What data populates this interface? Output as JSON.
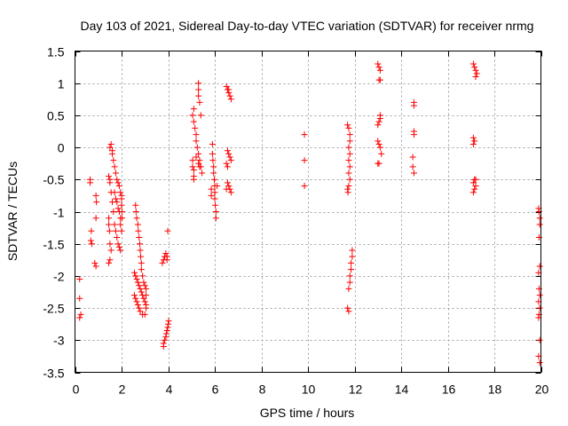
{
  "chart_data": {
    "type": "scatter",
    "title": "Day 103 of 2021, Sidereal Day-to-day VTEC variation (SDTVAR) for receiver nrmg",
    "xlabel": "GPS time / hours",
    "ylabel": "SDTVAR / TECUs",
    "xlim": [
      0,
      20
    ],
    "ylim": [
      -3.5,
      1.5
    ],
    "xticks": [
      0,
      2,
      4,
      6,
      8,
      10,
      12,
      14,
      16,
      18,
      20
    ],
    "yticks": [
      1.5,
      1,
      0.5,
      0,
      -0.5,
      -1,
      -1.5,
      -2,
      -2.5,
      -3,
      -3.5
    ],
    "xtick_labels": [
      "0",
      "2",
      "4",
      "6",
      "8",
      "10",
      "12",
      "14",
      "16",
      "18",
      "20"
    ],
    "ytick_labels": [
      "1.5",
      "1",
      "0.5",
      "0",
      "-0.5",
      "-1",
      "-1.5",
      "-2",
      "-2.5",
      "-3",
      "-3.5"
    ],
    "grid": true,
    "marker": "+",
    "marker_color": "#ff0000",
    "series": [
      {
        "name": "SDTVAR",
        "points": [
          [
            0.2,
            -2.05
          ],
          [
            0.2,
            -2.35
          ],
          [
            0.25,
            -2.6
          ],
          [
            0.2,
            -2.65
          ],
          [
            0.65,
            -0.5
          ],
          [
            0.65,
            -0.55
          ],
          [
            0.7,
            -1.3
          ],
          [
            0.68,
            -1.45
          ],
          [
            0.72,
            -1.5
          ],
          [
            0.9,
            -0.75
          ],
          [
            0.92,
            -0.85
          ],
          [
            0.9,
            -1.1
          ],
          [
            0.85,
            -1.8
          ],
          [
            0.9,
            -1.85
          ],
          [
            1.5,
            0.0
          ],
          [
            1.55,
            0.05
          ],
          [
            1.6,
            -0.05
          ],
          [
            1.6,
            -0.1
          ],
          [
            1.65,
            -0.2
          ],
          [
            1.7,
            -0.3
          ],
          [
            1.75,
            -0.4
          ],
          [
            1.8,
            -0.5
          ],
          [
            1.85,
            -0.55
          ],
          [
            1.9,
            -0.6
          ],
          [
            1.95,
            -0.7
          ],
          [
            2.0,
            -0.75
          ],
          [
            2.0,
            -0.8
          ],
          [
            2.0,
            -0.9
          ],
          [
            2.02,
            -1.0
          ],
          [
            2.02,
            -1.1
          ],
          [
            1.45,
            -0.45
          ],
          [
            1.5,
            -0.5
          ],
          [
            1.5,
            -0.55
          ],
          [
            1.55,
            -0.7
          ],
          [
            1.6,
            -0.85
          ],
          [
            1.65,
            -1.0
          ],
          [
            1.7,
            -1.2
          ],
          [
            1.75,
            -1.3
          ],
          [
            1.8,
            -1.4
          ],
          [
            1.85,
            -1.5
          ],
          [
            1.9,
            -1.55
          ],
          [
            1.95,
            -1.6
          ],
          [
            1.45,
            -1.1
          ],
          [
            1.45,
            -1.2
          ],
          [
            1.48,
            -1.3
          ],
          [
            1.5,
            -1.5
          ],
          [
            1.55,
            -1.6
          ],
          [
            1.5,
            -1.75
          ],
          [
            1.45,
            -1.8
          ],
          [
            1.7,
            -0.7
          ],
          [
            1.75,
            -0.8
          ],
          [
            1.8,
            -0.85
          ],
          [
            1.85,
            -0.95
          ],
          [
            1.9,
            -1.0
          ],
          [
            1.95,
            -1.1
          ],
          [
            1.95,
            -1.2
          ],
          [
            2.0,
            -1.3
          ],
          [
            2.6,
            -0.9
          ],
          [
            2.62,
            -1.0
          ],
          [
            2.65,
            -1.1
          ],
          [
            2.7,
            -1.2
          ],
          [
            2.72,
            -1.3
          ],
          [
            2.75,
            -1.4
          ],
          [
            2.78,
            -1.5
          ],
          [
            2.8,
            -1.6
          ],
          [
            2.82,
            -1.7
          ],
          [
            2.85,
            -1.8
          ],
          [
            2.85,
            -1.9
          ],
          [
            2.55,
            -1.95
          ],
          [
            2.6,
            -2.0
          ],
          [
            2.65,
            -2.05
          ],
          [
            2.7,
            -2.1
          ],
          [
            2.75,
            -2.15
          ],
          [
            2.8,
            -2.2
          ],
          [
            2.85,
            -2.25
          ],
          [
            2.9,
            -2.3
          ],
          [
            2.95,
            -2.35
          ],
          [
            3.0,
            -2.4
          ],
          [
            3.05,
            -2.45
          ],
          [
            3.05,
            -2.5
          ],
          [
            2.55,
            -2.3
          ],
          [
            2.6,
            -2.35
          ],
          [
            2.65,
            -2.4
          ],
          [
            2.7,
            -2.45
          ],
          [
            2.75,
            -2.5
          ],
          [
            2.8,
            -2.55
          ],
          [
            2.9,
            -2.6
          ],
          [
            3.0,
            -2.6
          ],
          [
            2.9,
            -2.0
          ],
          [
            2.95,
            -2.1
          ],
          [
            3.0,
            -2.15
          ],
          [
            3.05,
            -2.2
          ],
          [
            3.05,
            -2.3
          ],
          [
            3.75,
            -1.8
          ],
          [
            3.8,
            -1.75
          ],
          [
            3.85,
            -1.7
          ],
          [
            3.9,
            -1.65
          ],
          [
            3.95,
            -1.7
          ],
          [
            3.95,
            -1.75
          ],
          [
            3.98,
            -1.3
          ],
          [
            3.8,
            -3.05
          ],
          [
            3.8,
            -3.1
          ],
          [
            3.85,
            -3.0
          ],
          [
            3.9,
            -2.95
          ],
          [
            3.92,
            -2.9
          ],
          [
            3.95,
            -2.85
          ],
          [
            3.98,
            -2.8
          ],
          [
            4.0,
            -2.75
          ],
          [
            4.02,
            -2.7
          ],
          [
            5.05,
            0.5
          ],
          [
            5.1,
            0.6
          ],
          [
            5.1,
            0.4
          ],
          [
            5.15,
            0.3
          ],
          [
            5.2,
            0.2
          ],
          [
            5.2,
            0.1
          ],
          [
            5.25,
            0.0
          ],
          [
            5.3,
            -0.1
          ],
          [
            5.35,
            -0.2
          ],
          [
            5.4,
            -0.3
          ],
          [
            5.45,
            -0.4
          ],
          [
            5.3,
            0.8
          ],
          [
            5.3,
            0.9
          ],
          [
            5.3,
            1.0
          ],
          [
            5.35,
            0.7
          ],
          [
            5.4,
            0.5
          ],
          [
            5.05,
            -0.2
          ],
          [
            5.05,
            -0.3
          ],
          [
            5.1,
            -0.35
          ],
          [
            5.1,
            -0.45
          ],
          [
            5.1,
            -0.5
          ],
          [
            5.2,
            -0.15
          ],
          [
            5.3,
            -0.25
          ],
          [
            5.35,
            -0.3
          ],
          [
            5.9,
            0.05
          ],
          [
            5.9,
            -0.1
          ],
          [
            5.92,
            -0.2
          ],
          [
            5.95,
            -0.3
          ],
          [
            5.95,
            -0.4
          ],
          [
            5.98,
            -0.5
          ],
          [
            6.0,
            -0.6
          ],
          [
            6.0,
            -0.7
          ],
          [
            6.0,
            -0.8
          ],
          [
            6.02,
            -0.9
          ],
          [
            6.05,
            -1.0
          ],
          [
            6.05,
            -1.1
          ],
          [
            5.85,
            -0.65
          ],
          [
            5.85,
            -0.75
          ],
          [
            6.1,
            -0.6
          ],
          [
            6.5,
            0.95
          ],
          [
            6.55,
            0.9
          ],
          [
            6.6,
            0.85
          ],
          [
            6.65,
            0.8
          ],
          [
            6.7,
            0.75
          ],
          [
            6.6,
            0.9
          ],
          [
            6.55,
            -0.05
          ],
          [
            6.6,
            -0.1
          ],
          [
            6.65,
            -0.15
          ],
          [
            6.7,
            -0.2
          ],
          [
            6.5,
            -0.25
          ],
          [
            6.55,
            -0.3
          ],
          [
            6.55,
            -0.55
          ],
          [
            6.6,
            -0.6
          ],
          [
            6.65,
            -0.65
          ],
          [
            6.7,
            -0.7
          ],
          [
            6.5,
            -0.65
          ],
          [
            9.85,
            0.2
          ],
          [
            9.85,
            -0.2
          ],
          [
            9.85,
            -0.6
          ],
          [
            11.7,
            0.35
          ],
          [
            11.75,
            0.3
          ],
          [
            11.8,
            0.2
          ],
          [
            11.8,
            0.1
          ],
          [
            11.75,
            0.0
          ],
          [
            11.8,
            -0.1
          ],
          [
            11.75,
            -0.2
          ],
          [
            11.8,
            -0.3
          ],
          [
            11.75,
            -0.4
          ],
          [
            11.8,
            -0.5
          ],
          [
            11.75,
            -0.6
          ],
          [
            11.7,
            -0.65
          ],
          [
            11.72,
            -0.7
          ],
          [
            11.7,
            -2.5
          ],
          [
            11.75,
            -2.55
          ],
          [
            11.75,
            -2.2
          ],
          [
            11.8,
            -2.1
          ],
          [
            11.8,
            -2.0
          ],
          [
            11.85,
            -1.9
          ],
          [
            11.85,
            -1.8
          ],
          [
            11.9,
            -1.7
          ],
          [
            11.9,
            -1.6
          ],
          [
            13.0,
            1.3
          ],
          [
            13.05,
            1.25
          ],
          [
            13.1,
            1.2
          ],
          [
            13.05,
            1.05
          ],
          [
            13.1,
            1.05
          ],
          [
            13.0,
            0.35
          ],
          [
            13.05,
            0.4
          ],
          [
            13.1,
            0.45
          ],
          [
            13.1,
            0.5
          ],
          [
            13.0,
            0.1
          ],
          [
            13.05,
            0.05
          ],
          [
            13.1,
            0.0
          ],
          [
            13.15,
            -0.1
          ],
          [
            13.0,
            -0.25
          ],
          [
            13.05,
            -0.25
          ],
          [
            14.55,
            0.7
          ],
          [
            14.55,
            0.65
          ],
          [
            14.55,
            0.25
          ],
          [
            14.55,
            0.2
          ],
          [
            14.5,
            -0.15
          ],
          [
            14.5,
            -0.3
          ],
          [
            14.55,
            -0.4
          ],
          [
            17.1,
            1.3
          ],
          [
            17.15,
            1.25
          ],
          [
            17.2,
            1.2
          ],
          [
            17.25,
            1.15
          ],
          [
            17.2,
            1.1
          ],
          [
            17.1,
            0.15
          ],
          [
            17.15,
            0.1
          ],
          [
            17.1,
            0.05
          ],
          [
            17.15,
            -0.5
          ],
          [
            17.1,
            -0.55
          ],
          [
            17.2,
            -0.6
          ],
          [
            17.15,
            -0.65
          ],
          [
            17.1,
            -0.7
          ],
          [
            17.2,
            -0.5
          ],
          [
            19.9,
            -0.95
          ],
          [
            19.92,
            -1.0
          ],
          [
            19.95,
            -1.1
          ],
          [
            19.95,
            -1.2
          ],
          [
            19.92,
            -1.4
          ],
          [
            19.95,
            -1.85
          ],
          [
            19.9,
            -1.95
          ],
          [
            19.92,
            -2.2
          ],
          [
            19.95,
            -2.3
          ],
          [
            19.9,
            -2.4
          ],
          [
            19.95,
            -2.5
          ],
          [
            19.92,
            -2.6
          ],
          [
            19.9,
            -2.65
          ],
          [
            19.95,
            -3.0
          ],
          [
            19.9,
            -3.25
          ],
          [
            19.95,
            -3.35
          ]
        ]
      }
    ]
  }
}
